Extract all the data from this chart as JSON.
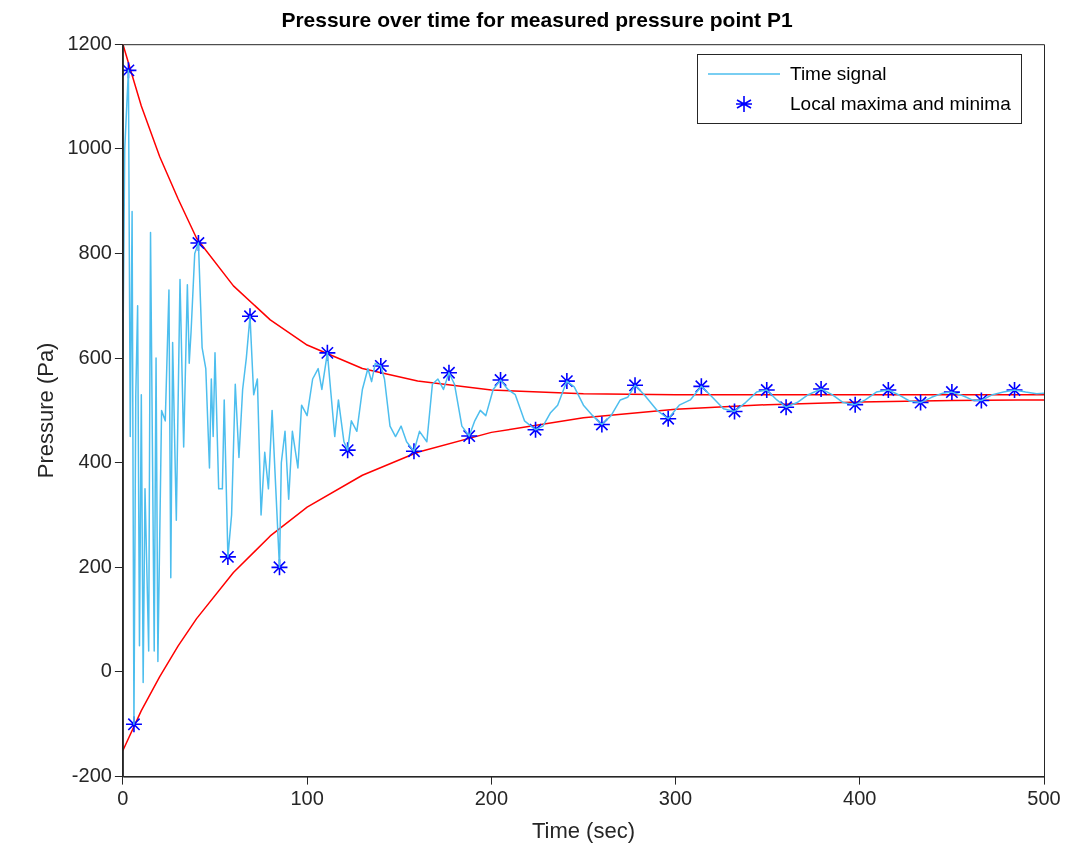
{
  "chart_data": {
    "type": "line",
    "title": "Pressure over time for measured pressure point P1",
    "xlabel": "Time (sec)",
    "ylabel": "Pressure (Pa)",
    "xlim": [
      0,
      500
    ],
    "xticks": [
      0,
      100,
      200,
      300,
      400,
      500
    ],
    "ylim": [
      -200,
      1200
    ],
    "yticks": [
      -200,
      0,
      200,
      400,
      600,
      800,
      1000,
      1200
    ],
    "legend": "top right",
    "series": [
      {
        "name": "Time signal",
        "color": "#4dbeee",
        "marker": "none",
        "x": [
          0,
          1,
          3,
          4,
          5,
          6,
          7,
          8,
          9,
          10,
          11,
          12,
          14,
          15,
          17,
          18,
          19,
          21,
          23,
          25,
          26,
          27,
          29,
          31,
          33,
          35,
          36,
          37,
          39,
          41,
          43,
          45,
          47,
          48,
          49,
          50,
          52,
          54,
          55,
          57,
          59,
          61,
          63,
          65,
          67,
          69,
          71,
          73,
          75,
          77,
          79,
          81,
          83,
          85,
          86,
          88,
          90,
          92,
          95,
          97,
          100,
          103,
          106,
          108,
          111,
          113,
          115,
          117,
          120,
          122,
          124,
          127,
          130,
          133,
          135,
          137,
          140,
          142,
          145,
          148,
          151,
          154,
          158,
          161,
          165,
          168,
          171,
          174,
          177,
          180,
          184,
          188,
          191,
          194,
          197,
          201,
          205,
          209,
          213,
          218,
          224,
          228,
          232,
          236,
          241,
          245,
          250,
          255,
          260,
          265,
          270,
          274,
          278,
          283,
          290,
          296,
          302,
          308,
          314,
          320,
          326,
          332,
          338,
          344,
          349.5,
          355,
          360,
          366,
          372,
          379,
          385,
          391,
          397.5,
          403,
          409,
          415.5,
          421,
          427,
          433,
          439,
          445,
          450,
          456,
          461,
          466,
          472,
          478,
          484,
          490,
          496,
          500
        ],
        "values": [
          600,
          1000,
          1150,
          450,
          880,
          -100,
          530,
          700,
          50,
          530,
          -20,
          350,
          40,
          840,
          40,
          600,
          20,
          500,
          480,
          730,
          180,
          630,
          290,
          750,
          430,
          740,
          590,
          650,
          800,
          820,
          620,
          580,
          390,
          560,
          450,
          610,
          350,
          350,
          520,
          220,
          300,
          550,
          410,
          540,
          600,
          680,
          530,
          560,
          300,
          420,
          350,
          500,
          350,
          200,
          400,
          460,
          330,
          460,
          390,
          510,
          490,
          560,
          580,
          540,
          610,
          530,
          450,
          520,
          440,
          424,
          480,
          460,
          540,
          580,
          555,
          590,
          585,
          560,
          470,
          450,
          470,
          440,
          422,
          460,
          440,
          550,
          560,
          540,
          572,
          550,
          470,
          451,
          480,
          500,
          490,
          540,
          558,
          540,
          530,
          480,
          463,
          470,
          495,
          510,
          556,
          545,
          510,
          490,
          473,
          490,
          520,
          525,
          548,
          530,
          500,
          484,
          510,
          520,
          546,
          525,
          503,
          498,
          515,
          535,
          539,
          520,
          506,
          515,
          530,
          541,
          530,
          515,
          511,
          520,
          535,
          539,
          530,
          518,
          515,
          525,
          533,
          535,
          528,
          520,
          519,
          530,
          535,
          539,
          535,
          532,
          533
        ]
      },
      {
        "name": "Local maxima and minima",
        "type": "scatter",
        "color": "#0000ff",
        "marker": "cross",
        "x": [
          3,
          6,
          41,
          57,
          69,
          85,
          111,
          122,
          140,
          158,
          177,
          188,
          205,
          224,
          241,
          260,
          278,
          296,
          314,
          332,
          349.5,
          360,
          379,
          397.5,
          415.5,
          433,
          450,
          466,
          484
        ],
        "values": [
          1150,
          -100,
          820,
          220,
          680,
          200,
          610,
          424,
          585,
          422,
          572,
          451,
          558,
          463,
          556,
          473,
          548,
          484,
          546,
          498,
          539,
          506,
          541,
          511,
          539,
          515,
          535,
          519,
          539
        ]
      },
      {
        "color": "#ff0000",
        "marker": "none",
        "x": [
          0,
          10,
          20,
          30,
          40,
          60,
          80,
          100,
          130,
          160,
          200,
          250,
          300,
          350,
          400,
          450,
          500
        ],
        "values": [
          1200,
          1082,
          985,
          904,
          829,
          738,
          673,
          625,
          580,
          556,
          539,
          532,
          530,
          530,
          530,
          530,
          530
        ]
      },
      {
        "color": "#ff0000",
        "marker": "none",
        "x": [
          0,
          10,
          20,
          30,
          40,
          60,
          80,
          100,
          130,
          160,
          200,
          250,
          300,
          350,
          400,
          450,
          500
        ],
        "values": [
          -150,
          -74,
          -9,
          50,
          102,
          190,
          260,
          315,
          376,
          420,
          458,
          486,
          502,
          511,
          516,
          519,
          520
        ]
      }
    ]
  }
}
